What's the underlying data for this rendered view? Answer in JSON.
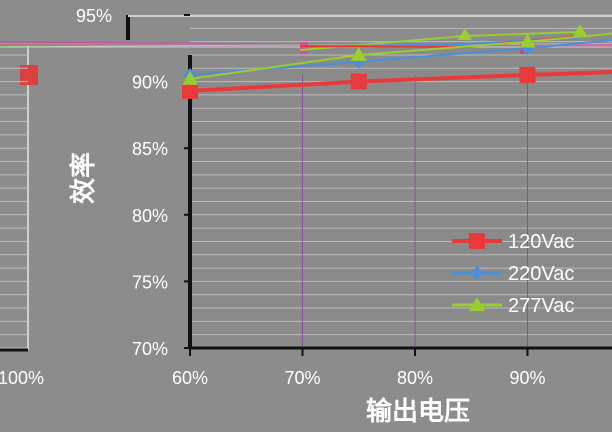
{
  "chart_data": {
    "type": "line",
    "title": "",
    "xlabel": "输出电压",
    "ylabel": "效率",
    "x": [
      60,
      75,
      90
    ],
    "x_ticks": [
      "60%",
      "70%",
      "80%",
      "90%"
    ],
    "x_tick_values": [
      60,
      70,
      80,
      90
    ],
    "xlim": [
      60,
      100
    ],
    "y_ticks": [
      "70%",
      "75%",
      "80%",
      "85%",
      "90%",
      "95%"
    ],
    "y_tick_values": [
      70,
      75,
      80,
      85,
      90,
      95
    ],
    "ylim": [
      70,
      95
    ],
    "grid": true,
    "legend_position": "bottom-right",
    "series": [
      {
        "name": "120Vac",
        "values": [
          89.3,
          90.0,
          90.5
        ],
        "color": "#e83a3a",
        "marker": "square"
      },
      {
        "name": "220Vac",
        "values": [
          90.5,
          91.5,
          92.5
        ],
        "color": "#4a90d9",
        "marker": "diamond"
      },
      {
        "name": "277Vac",
        "values": [
          90.2,
          92.0,
          93.0
        ],
        "color": "#9acd32",
        "marker": "triangle"
      }
    ],
    "left_fragment_tick": "100%"
  }
}
